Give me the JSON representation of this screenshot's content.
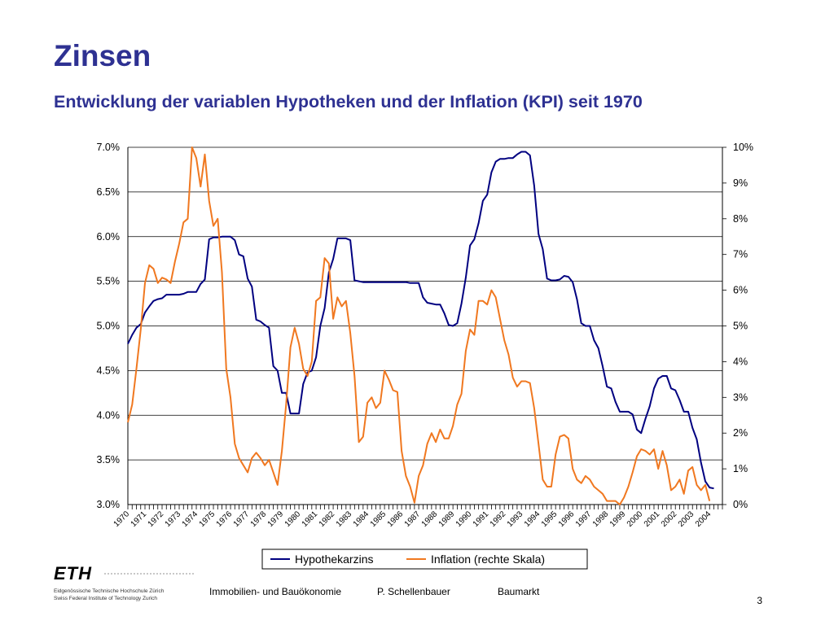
{
  "slide": {
    "title": "Zinsen",
    "subtitle": "Entwicklung der variablen Hypotheken und der Inflation (KPI) seit 1970",
    "title_color": "#2e3192",
    "page_number": "3"
  },
  "footer": {
    "logo_text": "ETH",
    "logo_line1": "Eidgenössische Technische Hochschule Zürich",
    "logo_line2": "Swiss Federal Institute of Technology Zurich",
    "department": "Immobilien- und Bauökonomie",
    "author": "P. Schellenbauer",
    "topic": "Baumarkt"
  },
  "chart_data": {
    "type": "line",
    "x_range": [
      1970.0,
      2004.75
    ],
    "x_tick_labels": [
      "1970",
      "1971",
      "1972",
      "1973",
      "1974",
      "1975",
      "1976",
      "1977",
      "1978",
      "1979",
      "1980",
      "1981",
      "1982",
      "1983",
      "1984",
      "1985",
      "1986",
      "1987",
      "1988",
      "1989",
      "1990",
      "1991",
      "1992",
      "1993",
      "1994",
      "1995",
      "1996",
      "1997",
      "1998",
      "1999",
      "2000",
      "2001",
      "2002",
      "2003",
      "2004"
    ],
    "y_left": {
      "range": [
        3.0,
        7.0
      ],
      "tick_labels": [
        "3.0%",
        "3.5%",
        "4.0%",
        "4.5%",
        "5.0%",
        "5.5%",
        "6.0%",
        "6.5%",
        "7.0%"
      ]
    },
    "y_right": {
      "range": [
        0,
        10
      ],
      "tick_labels": [
        "0%",
        "1%",
        "2%",
        "3%",
        "4%",
        "5%",
        "6%",
        "7%",
        "8%",
        "9%",
        "10%"
      ]
    },
    "grid": "horizontal",
    "legend_position": "bottom",
    "series": [
      {
        "name": "Hypothekarzins",
        "axis": "left",
        "color": "#000080",
        "points": [
          [
            1970.0,
            4.8
          ],
          [
            1970.25,
            4.9
          ],
          [
            1970.5,
            4.98
          ],
          [
            1970.75,
            5.02
          ],
          [
            1971.0,
            5.15
          ],
          [
            1971.25,
            5.22
          ],
          [
            1971.5,
            5.28
          ],
          [
            1971.75,
            5.3
          ],
          [
            1972.0,
            5.31
          ],
          [
            1972.25,
            5.35
          ],
          [
            1972.5,
            5.35
          ],
          [
            1973.0,
            5.35
          ],
          [
            1973.25,
            5.36
          ],
          [
            1973.5,
            5.38
          ],
          [
            1973.75,
            5.38
          ],
          [
            1974.0,
            5.38
          ],
          [
            1974.25,
            5.47
          ],
          [
            1974.5,
            5.52
          ],
          [
            1974.75,
            5.97
          ],
          [
            1975.0,
            5.99
          ],
          [
            1975.25,
            5.99
          ],
          [
            1975.5,
            6.0
          ],
          [
            1975.75,
            6.0
          ],
          [
            1976.0,
            6.0
          ],
          [
            1976.25,
            5.96
          ],
          [
            1976.5,
            5.8
          ],
          [
            1976.75,
            5.78
          ],
          [
            1977.0,
            5.53
          ],
          [
            1977.25,
            5.44
          ],
          [
            1977.5,
            5.07
          ],
          [
            1977.75,
            5.05
          ],
          [
            1978.0,
            5.01
          ],
          [
            1978.25,
            4.98
          ],
          [
            1978.5,
            4.55
          ],
          [
            1978.75,
            4.5
          ],
          [
            1979.0,
            4.25
          ],
          [
            1979.25,
            4.25
          ],
          [
            1979.5,
            4.02
          ],
          [
            1979.75,
            4.02
          ],
          [
            1980.0,
            4.02
          ],
          [
            1980.25,
            4.35
          ],
          [
            1980.5,
            4.48
          ],
          [
            1980.75,
            4.5
          ],
          [
            1981.0,
            4.65
          ],
          [
            1981.25,
            5.0
          ],
          [
            1981.5,
            5.2
          ],
          [
            1981.75,
            5.6
          ],
          [
            1982.0,
            5.75
          ],
          [
            1982.25,
            5.98
          ],
          [
            1982.5,
            5.98
          ],
          [
            1982.75,
            5.98
          ],
          [
            1983.0,
            5.96
          ],
          [
            1983.25,
            5.51
          ],
          [
            1983.5,
            5.5
          ],
          [
            1983.75,
            5.49
          ],
          [
            1984.0,
            5.49
          ],
          [
            1984.5,
            5.49
          ],
          [
            1985.0,
            5.49
          ],
          [
            1985.5,
            5.49
          ],
          [
            1986.0,
            5.49
          ],
          [
            1986.25,
            5.49
          ],
          [
            1986.5,
            5.48
          ],
          [
            1986.75,
            5.48
          ],
          [
            1987.0,
            5.48
          ],
          [
            1987.25,
            5.32
          ],
          [
            1987.5,
            5.26
          ],
          [
            1987.75,
            5.25
          ],
          [
            1988.0,
            5.24
          ],
          [
            1988.25,
            5.24
          ],
          [
            1988.5,
            5.14
          ],
          [
            1988.75,
            5.01
          ],
          [
            1989.0,
            5.0
          ],
          [
            1989.25,
            5.03
          ],
          [
            1989.5,
            5.25
          ],
          [
            1989.75,
            5.54
          ],
          [
            1990.0,
            5.9
          ],
          [
            1990.25,
            5.97
          ],
          [
            1990.5,
            6.15
          ],
          [
            1990.75,
            6.4
          ],
          [
            1991.0,
            6.47
          ],
          [
            1991.25,
            6.72
          ],
          [
            1991.5,
            6.84
          ],
          [
            1991.75,
            6.87
          ],
          [
            1992.0,
            6.87
          ],
          [
            1992.25,
            6.88
          ],
          [
            1992.5,
            6.88
          ],
          [
            1992.75,
            6.92
          ],
          [
            1993.0,
            6.95
          ],
          [
            1993.25,
            6.95
          ],
          [
            1993.5,
            6.91
          ],
          [
            1993.75,
            6.57
          ],
          [
            1994.0,
            6.03
          ],
          [
            1994.25,
            5.86
          ],
          [
            1994.5,
            5.53
          ],
          [
            1994.75,
            5.51
          ],
          [
            1995.0,
            5.51
          ],
          [
            1995.25,
            5.52
          ],
          [
            1995.5,
            5.56
          ],
          [
            1995.75,
            5.55
          ],
          [
            1996.0,
            5.49
          ],
          [
            1996.25,
            5.3
          ],
          [
            1996.5,
            5.03
          ],
          [
            1996.75,
            5.0
          ],
          [
            1997.0,
            5.0
          ],
          [
            1997.25,
            4.84
          ],
          [
            1997.5,
            4.75
          ],
          [
            1997.75,
            4.55
          ],
          [
            1998.0,
            4.32
          ],
          [
            1998.25,
            4.3
          ],
          [
            1998.5,
            4.15
          ],
          [
            1998.75,
            4.04
          ],
          [
            1999.0,
            4.04
          ],
          [
            1999.25,
            4.04
          ],
          [
            1999.5,
            4.01
          ],
          [
            1999.75,
            3.84
          ],
          [
            2000.0,
            3.8
          ],
          [
            2000.25,
            3.96
          ],
          [
            2000.5,
            4.1
          ],
          [
            2000.75,
            4.3
          ],
          [
            2001.0,
            4.41
          ],
          [
            2001.25,
            4.44
          ],
          [
            2001.5,
            4.44
          ],
          [
            2001.75,
            4.3
          ],
          [
            2002.0,
            4.28
          ],
          [
            2002.25,
            4.17
          ],
          [
            2002.5,
            4.04
          ],
          [
            2002.75,
            4.04
          ],
          [
            2003.0,
            3.86
          ],
          [
            2003.25,
            3.73
          ],
          [
            2003.5,
            3.47
          ],
          [
            2003.75,
            3.26
          ],
          [
            2004.0,
            3.19
          ],
          [
            2004.25,
            3.18
          ]
        ]
      },
      {
        "name": "Inflation (rechte Skala)",
        "axis": "right",
        "color": "#f07820",
        "points": [
          [
            1970.0,
            2.3
          ],
          [
            1970.25,
            2.8
          ],
          [
            1970.5,
            3.8
          ],
          [
            1970.75,
            4.9
          ],
          [
            1971.0,
            6.2
          ],
          [
            1971.25,
            6.7
          ],
          [
            1971.5,
            6.6
          ],
          [
            1971.75,
            6.2
          ],
          [
            1972.0,
            6.35
          ],
          [
            1972.25,
            6.3
          ],
          [
            1972.5,
            6.2
          ],
          [
            1972.75,
            6.8
          ],
          [
            1973.0,
            7.3
          ],
          [
            1973.25,
            7.9
          ],
          [
            1973.5,
            8.0
          ],
          [
            1973.75,
            10.0
          ],
          [
            1974.0,
            9.7
          ],
          [
            1974.25,
            8.9
          ],
          [
            1974.5,
            9.8
          ],
          [
            1974.75,
            8.5
          ],
          [
            1975.0,
            7.8
          ],
          [
            1975.25,
            8.0
          ],
          [
            1975.5,
            6.5
          ],
          [
            1975.75,
            3.8
          ],
          [
            1976.0,
            3.0
          ],
          [
            1976.25,
            1.7
          ],
          [
            1976.5,
            1.3
          ],
          [
            1976.75,
            1.1
          ],
          [
            1977.0,
            0.9
          ],
          [
            1977.25,
            1.3
          ],
          [
            1977.5,
            1.45
          ],
          [
            1977.75,
            1.3
          ],
          [
            1978.0,
            1.1
          ],
          [
            1978.25,
            1.25
          ],
          [
            1978.5,
            0.9
          ],
          [
            1978.75,
            0.55
          ],
          [
            1979.0,
            1.5
          ],
          [
            1979.25,
            2.8
          ],
          [
            1979.5,
            4.4
          ],
          [
            1979.75,
            4.95
          ],
          [
            1980.0,
            4.5
          ],
          [
            1980.25,
            3.8
          ],
          [
            1980.5,
            3.6
          ],
          [
            1980.75,
            4.0
          ],
          [
            1981.0,
            5.7
          ],
          [
            1981.25,
            5.8
          ],
          [
            1981.5,
            6.9
          ],
          [
            1981.75,
            6.75
          ],
          [
            1982.0,
            5.2
          ],
          [
            1982.25,
            5.8
          ],
          [
            1982.5,
            5.55
          ],
          [
            1982.75,
            5.7
          ],
          [
            1983.0,
            4.8
          ],
          [
            1983.25,
            3.6
          ],
          [
            1983.5,
            1.75
          ],
          [
            1983.75,
            1.9
          ],
          [
            1984.0,
            2.85
          ],
          [
            1984.25,
            3.0
          ],
          [
            1984.5,
            2.7
          ],
          [
            1984.75,
            2.85
          ],
          [
            1985.0,
            3.75
          ],
          [
            1985.25,
            3.5
          ],
          [
            1985.5,
            3.2
          ],
          [
            1985.75,
            3.15
          ],
          [
            1986.0,
            1.5
          ],
          [
            1986.25,
            0.8
          ],
          [
            1986.5,
            0.5
          ],
          [
            1986.75,
            0.05
          ],
          [
            1987.0,
            0.8
          ],
          [
            1987.25,
            1.1
          ],
          [
            1987.5,
            1.7
          ],
          [
            1987.75,
            2.0
          ],
          [
            1988.0,
            1.75
          ],
          [
            1988.25,
            2.1
          ],
          [
            1988.5,
            1.85
          ],
          [
            1988.75,
            1.85
          ],
          [
            1989.0,
            2.2
          ],
          [
            1989.25,
            2.8
          ],
          [
            1989.5,
            3.1
          ],
          [
            1989.75,
            4.3
          ],
          [
            1990.0,
            4.9
          ],
          [
            1990.25,
            4.75
          ],
          [
            1990.5,
            5.7
          ],
          [
            1990.75,
            5.7
          ],
          [
            1991.0,
            5.6
          ],
          [
            1991.25,
            6.0
          ],
          [
            1991.5,
            5.8
          ],
          [
            1991.75,
            5.2
          ],
          [
            1992.0,
            4.6
          ],
          [
            1992.25,
            4.2
          ],
          [
            1992.5,
            3.55
          ],
          [
            1992.75,
            3.3
          ],
          [
            1993.0,
            3.45
          ],
          [
            1993.25,
            3.45
          ],
          [
            1993.5,
            3.4
          ],
          [
            1993.75,
            2.7
          ],
          [
            1994.0,
            1.7
          ],
          [
            1994.25,
            0.7
          ],
          [
            1994.5,
            0.5
          ],
          [
            1994.75,
            0.5
          ],
          [
            1995.0,
            1.4
          ],
          [
            1995.25,
            1.9
          ],
          [
            1995.5,
            1.95
          ],
          [
            1995.75,
            1.85
          ],
          [
            1996.0,
            1.0
          ],
          [
            1996.25,
            0.7
          ],
          [
            1996.5,
            0.6
          ],
          [
            1996.75,
            0.8
          ],
          [
            1997.0,
            0.7
          ],
          [
            1997.25,
            0.5
          ],
          [
            1997.5,
            0.4
          ],
          [
            1997.75,
            0.3
          ],
          [
            1998.0,
            0.1
          ],
          [
            1998.25,
            0.1
          ],
          [
            1998.5,
            0.1
          ],
          [
            1998.75,
            0.0
          ],
          [
            1999.0,
            0.2
          ],
          [
            1999.25,
            0.5
          ],
          [
            1999.5,
            0.9
          ],
          [
            1999.75,
            1.35
          ],
          [
            2000.0,
            1.55
          ],
          [
            2000.25,
            1.5
          ],
          [
            2000.5,
            1.4
          ],
          [
            2000.75,
            1.55
          ],
          [
            2001.0,
            1.0
          ],
          [
            2001.25,
            1.5
          ],
          [
            2001.5,
            1.1
          ],
          [
            2001.75,
            0.4
          ],
          [
            2002.0,
            0.5
          ],
          [
            2002.25,
            0.7
          ],
          [
            2002.5,
            0.3
          ],
          [
            2002.75,
            0.95
          ],
          [
            2003.0,
            1.05
          ],
          [
            2003.25,
            0.55
          ],
          [
            2003.5,
            0.4
          ],
          [
            2003.75,
            0.55
          ],
          [
            2004.0,
            0.1
          ]
        ]
      }
    ]
  }
}
